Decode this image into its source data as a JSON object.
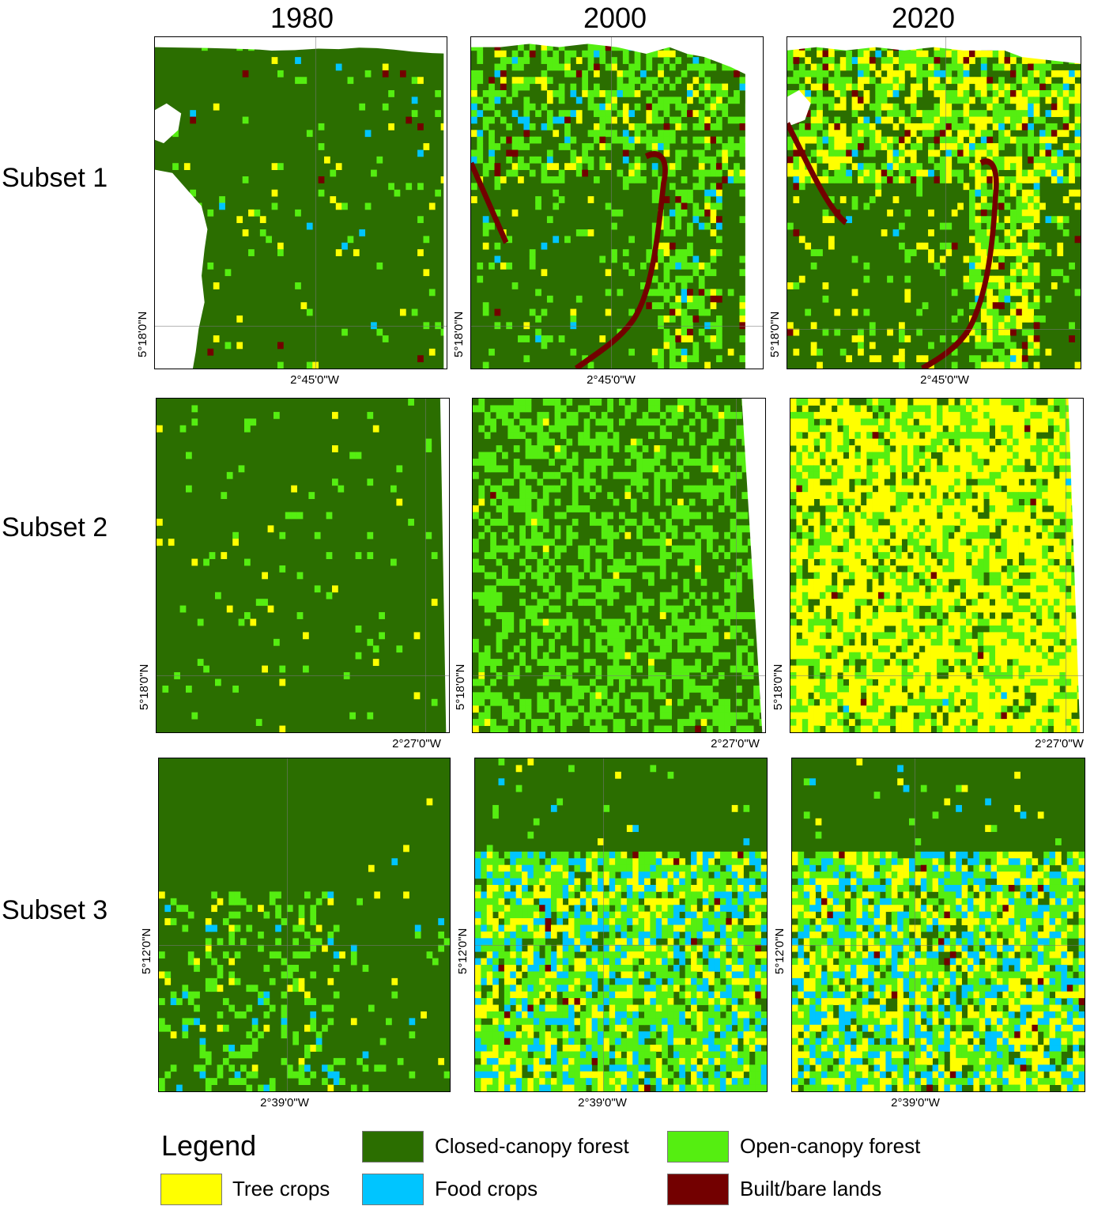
{
  "columns": [
    "1980",
    "2000",
    "2020"
  ],
  "rows": [
    "Subset 1",
    "Subset 2",
    "Subset 3"
  ],
  "axis_labels": {
    "subset1": {
      "lon": "2°45'0\"W",
      "lat": "5°18'0\"N"
    },
    "subset2": {
      "lon": "2°27'0\"W",
      "lat": "5°18'0\"N"
    },
    "subset3": {
      "lon": "2°39'0\"W",
      "lat": "5°12'0\"N"
    }
  },
  "legend": {
    "title": "Legend",
    "items": [
      {
        "label": "Closed-canopy forest",
        "color": "#2b6e00"
      },
      {
        "label": "Open-canopy forest",
        "color": "#55ee11"
      },
      {
        "label": "Tree crops",
        "color": "#ffff00"
      },
      {
        "label": "Food crops",
        "color": "#00c5ff"
      },
      {
        "label": "Built/bare lands",
        "color": "#730000"
      }
    ]
  },
  "class_levels": [
    {
      "subset": "Subset 1",
      "year": "1980",
      "open": 0.03,
      "tree": 0.015,
      "food": 0.004,
      "built": 0.003
    },
    {
      "subset": "Subset 1",
      "year": "2000",
      "open": 0.22,
      "tree": 0.05,
      "food": 0.02,
      "built": 0.02
    },
    {
      "subset": "Subset 1",
      "year": "2020",
      "open": 0.22,
      "tree": 0.18,
      "food": 0.02,
      "built": 0.02
    },
    {
      "subset": "Subset 2",
      "year": "1980",
      "open": 0.03,
      "tree": 0.01,
      "food": 0.0,
      "built": 0.0
    },
    {
      "subset": "Subset 2",
      "year": "2000",
      "open": 0.45,
      "tree": 0.01,
      "food": 0.0,
      "built": 0.002
    },
    {
      "subset": "Subset 2",
      "year": "2020",
      "open": 0.28,
      "tree": 0.58,
      "food": 0.003,
      "built": 0.003
    },
    {
      "subset": "Subset 3",
      "year": "1980",
      "open": 0.1,
      "tree": 0.02,
      "food": 0.02,
      "built": 0.0
    },
    {
      "subset": "Subset 3",
      "year": "2000",
      "open": 0.3,
      "tree": 0.18,
      "food": 0.16,
      "built": 0.01
    },
    {
      "subset": "Subset 3",
      "year": "2020",
      "open": 0.26,
      "tree": 0.22,
      "food": 0.16,
      "built": 0.01
    }
  ]
}
